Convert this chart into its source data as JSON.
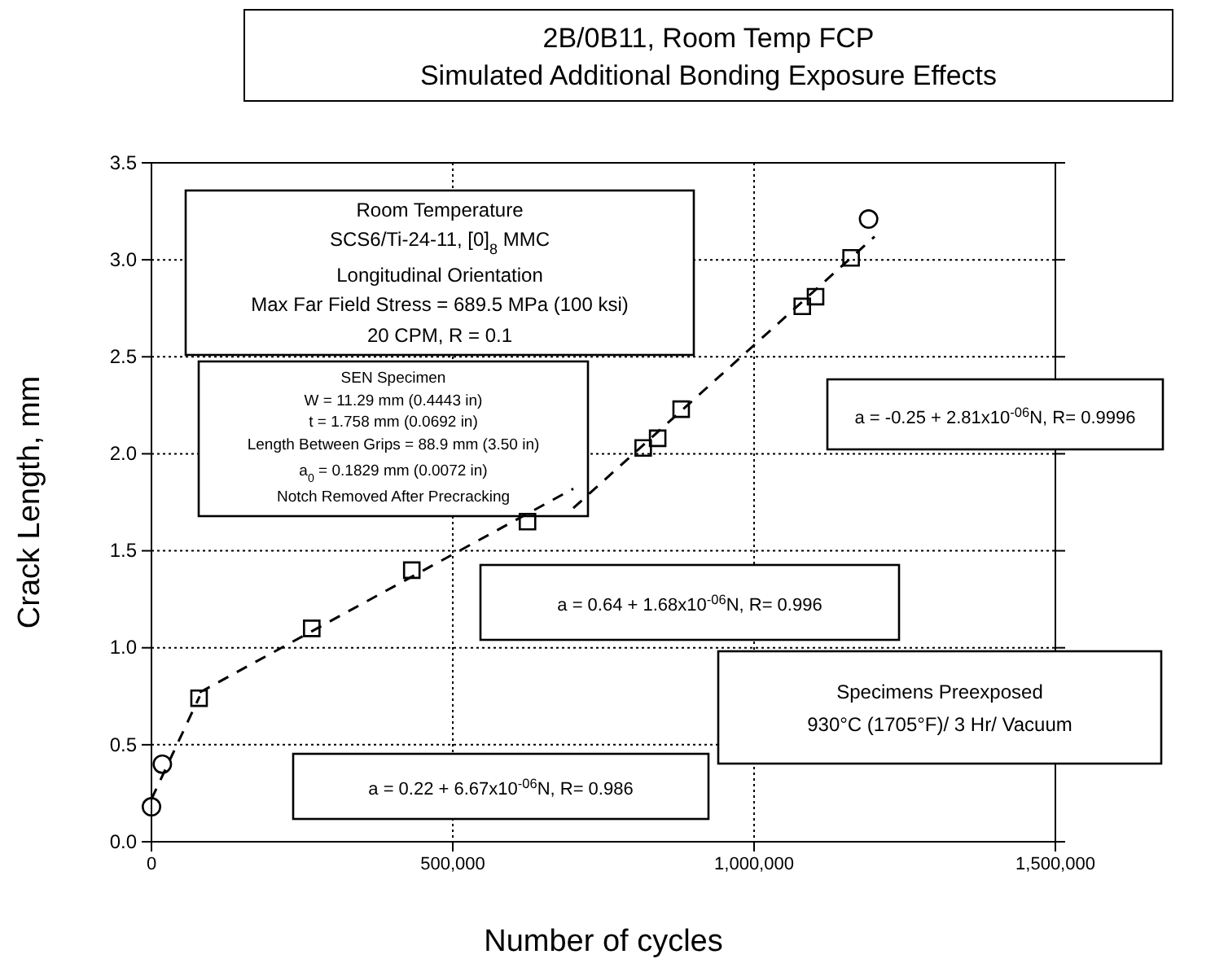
{
  "chart_data": {
    "type": "scatter",
    "title": "2B/0B11, Room Temp FCP",
    "subtitle": "Simulated Additional Bonding Exposure Effects",
    "xlabel": "Number of cycles",
    "ylabel": "Crack Length, mm",
    "xlim": [
      0,
      1500000
    ],
    "xticks": [
      0,
      {
        "value": 500000,
        "label": "500,000"
      },
      {
        "value": 1000000,
        "label": "1,000,000"
      },
      {
        "value": 1500000,
        "label": "1,500,000"
      }
    ],
    "ylim": [
      0,
      3.5
    ],
    "yticks": [
      {
        "value": 0,
        "label": "0.0"
      },
      0.5,
      {
        "value": 1,
        "label": "1.0"
      },
      1.5,
      {
        "value": 2,
        "label": "2.0"
      },
      2.5,
      {
        "value": 3,
        "label": "3.0"
      },
      3.5
    ],
    "grid": true,
    "series": [
      {
        "marker": "circle",
        "color": "#000000",
        "x": [
          0,
          18000,
          1190000
        ],
        "values": [
          0.18,
          0.4,
          3.21
        ]
      },
      {
        "marker": "square",
        "color": "#000000",
        "x": [
          79000,
          266000,
          432000,
          624000,
          816000,
          840000,
          879000,
          1080000,
          1102000,
          1161000
        ],
        "values": [
          0.74,
          1.1,
          1.4,
          1.65,
          2.03,
          2.08,
          2.23,
          2.76,
          2.81,
          3.01
        ]
      },
      {
        "type": "line",
        "line_style": "dashed",
        "marker": "none",
        "color": "#000000",
        "x": [
          0,
          80000
        ],
        "values": [
          0.22,
          0.75
        ]
      },
      {
        "type": "line",
        "line_style": "dashed",
        "marker": "none",
        "color": "#000000",
        "x": [
          80000,
          700000
        ],
        "values": [
          0.77,
          1.82
        ]
      },
      {
        "type": "line",
        "line_style": "dashed",
        "marker": "none",
        "color": "#000000",
        "x": [
          700000,
          1200000
        ],
        "values": [
          1.72,
          3.12
        ]
      }
    ],
    "annotations": [
      "Room Temperature",
      "SCS6/Ti-24-11, [0]$_{8}$ MMC",
      "Longitudinal Orientation",
      "Max Far Field Stress = 689.5 MPa (100 ksi)",
      "20 CPM, R = 0.1",
      "SEN Specimen",
      "W = 11.29 mm  (0.4443 in)",
      "t = 1.758 mm (0.0692 in)",
      "Length Between Grips = 88.9 mm (3.50 in)",
      "a$_{0}$ = 0.1829 mm (0.0072 in)",
      "Notch Removed After Precracking",
      "a = -0.25 + 2.81x10$^{-06}$N,  R= 0.9996",
      "a = 0.64 + 1.68x10$^{-06}$N,  R= 0.996",
      "Specimens Preexposed",
      "930°C (1705°F)/ 3 Hr/ Vacuum",
      "a = 0.22 + 6.67x10$^{-06}$N,  R= 0.986"
    ]
  }
}
